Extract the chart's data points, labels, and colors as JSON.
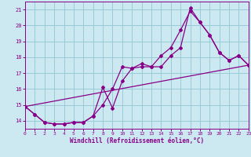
{
  "title": "",
  "xlabel": "Windchill (Refroidissement éolien,°C)",
  "xlim": [
    0,
    23
  ],
  "ylim": [
    13.5,
    21.5
  ],
  "yticks": [
    14,
    15,
    16,
    17,
    18,
    19,
    20,
    21
  ],
  "xticks": [
    0,
    1,
    2,
    3,
    4,
    5,
    6,
    7,
    8,
    9,
    10,
    11,
    12,
    13,
    14,
    15,
    16,
    17,
    18,
    19,
    20,
    21,
    22,
    23
  ],
  "bg_color": "#cce8f0",
  "grid_color": "#99ccd8",
  "line_color": "#880088",
  "line1_x": [
    0,
    1,
    2,
    3,
    4,
    5,
    6,
    7,
    8,
    9,
    10,
    11,
    12,
    13,
    14,
    15,
    16,
    17,
    18,
    19,
    20,
    21,
    22,
    23
  ],
  "line1_y": [
    14.9,
    14.4,
    13.9,
    13.8,
    13.8,
    13.9,
    13.9,
    14.3,
    16.1,
    14.8,
    16.5,
    17.3,
    17.6,
    17.4,
    17.4,
    18.1,
    18.6,
    21.1,
    20.2,
    19.4,
    18.3,
    17.8,
    18.1,
    17.5
  ],
  "line2_x": [
    0,
    1,
    2,
    3,
    4,
    5,
    6,
    7,
    8,
    9,
    10,
    11,
    12,
    13,
    14,
    15,
    16,
    17,
    18,
    19,
    20,
    21,
    22,
    23
  ],
  "line2_y": [
    14.9,
    14.4,
    13.9,
    13.8,
    13.8,
    13.9,
    13.9,
    14.3,
    15.0,
    16.0,
    17.4,
    17.3,
    17.4,
    17.4,
    18.1,
    18.6,
    19.7,
    20.9,
    20.2,
    19.4,
    18.3,
    17.8,
    18.1,
    17.5
  ],
  "line3_x": [
    0,
    23
  ],
  "line3_y": [
    14.9,
    17.5
  ]
}
